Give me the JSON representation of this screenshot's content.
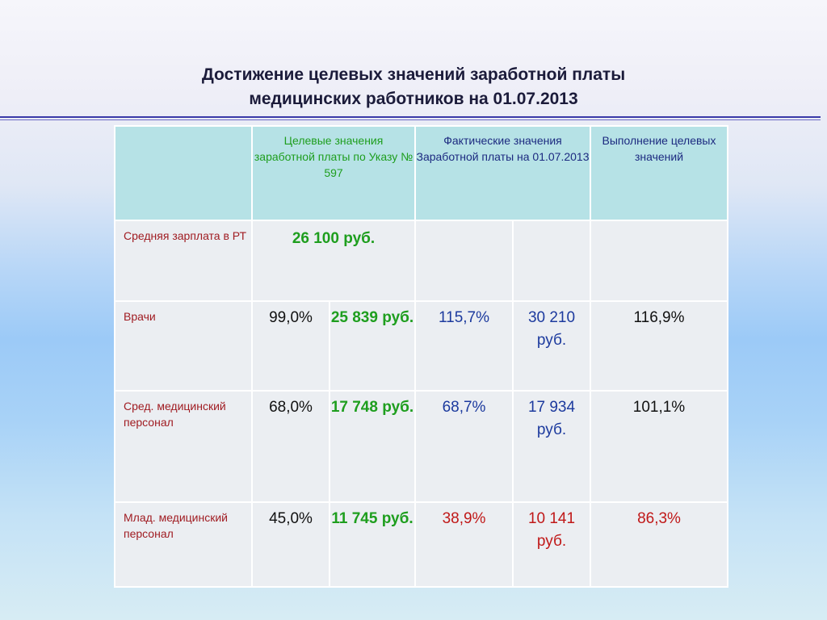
{
  "title": {
    "line1": "Достижение целевых значений заработной платы",
    "line2": "медицинских работников на 01.07.2013"
  },
  "table": {
    "headers": {
      "target": "Целевые значения заработной платы по Указу № 597",
      "actual": "Фактические значения Заработной платы на 01.07.2013",
      "completion": "Выполнение целевых значений"
    },
    "avg_salary": {
      "label": "Средняя зарплата в РТ",
      "value": "26 100 руб."
    },
    "rows": [
      {
        "label": "Врачи",
        "target_pct": "99,0%",
        "target_rub": "25 839 руб.",
        "actual_pct": "115,7%",
        "actual_rub": "30 210 руб.",
        "completion": "116,9%"
      },
      {
        "label": "Сред. медицинский персонал",
        "target_pct": "68,0%",
        "target_rub": "17 748 руб.",
        "actual_pct": "68,7%",
        "actual_rub": "17 934 руб.",
        "completion": "101,1%"
      },
      {
        "label": "Млад. медицинский персонал",
        "target_pct": "45,0%",
        "target_rub": "11 745 руб.",
        "actual_pct": "38,9%",
        "actual_rub": "10 141 руб.",
        "completion": "86,3%"
      }
    ]
  },
  "colors": {
    "label_red": "#a01c22",
    "value_green": "#1e9e1e",
    "value_blue": "#1c3a9e",
    "value_red": "#c01818",
    "header_bg": "#b6e2e6",
    "cell_bg": "#ebeef2"
  }
}
